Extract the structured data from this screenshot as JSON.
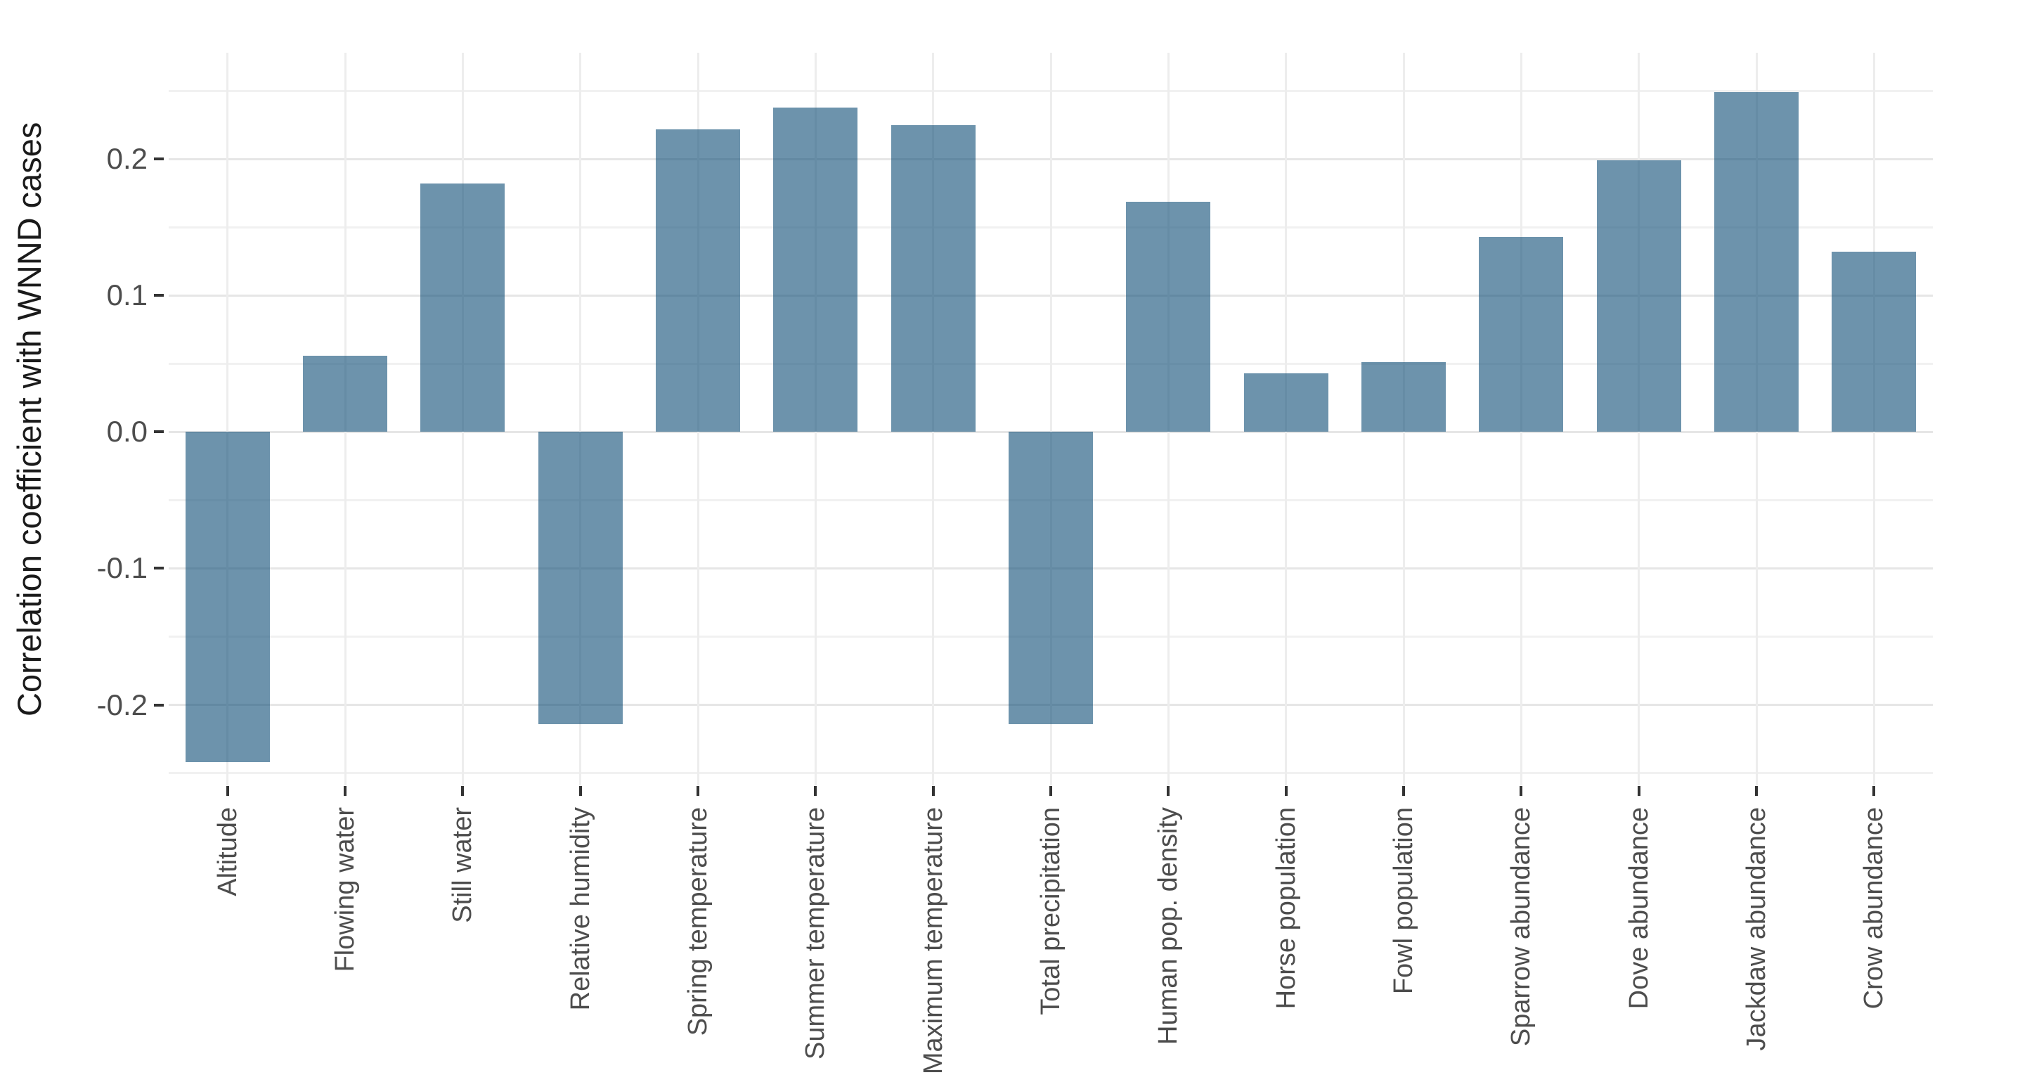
{
  "figure": {
    "background": "#ffffff"
  },
  "chart_data": {
    "type": "bar",
    "title": "",
    "xlabel": "",
    "ylabel": "Correlation coefficient with WNND cases",
    "categories": [
      "Altitude",
      "Flowing water",
      "Still water",
      "Relative humidity",
      "Spring temperature",
      "Summer temperature",
      "Maximum temperature",
      "Total precipitation",
      "Human pop. density",
      "Horse population",
      "Fowl population",
      "Sparrow abundance",
      "Dove abundance",
      "Jackdaw abundance",
      "Crow abundance"
    ],
    "values": [
      -0.242,
      0.056,
      0.182,
      -0.214,
      0.222,
      0.238,
      0.225,
      -0.214,
      0.169,
      0.043,
      0.051,
      0.143,
      0.199,
      0.249,
      0.132
    ],
    "y_ticks": [
      0.2,
      0.1,
      0.0,
      -0.1,
      -0.2
    ],
    "y_tick_labels": [
      "0.2",
      "0.1",
      "0.0",
      "-0.1",
      "-0.2"
    ],
    "y_minor_ticks": [
      0.25,
      0.15,
      0.05,
      -0.05,
      -0.15,
      -0.25
    ],
    "ylim": [
      -0.259,
      0.278
    ],
    "grid": "major+minor horizontal, vertical per category",
    "legend": "none",
    "bar_width_fraction": 0.72
  },
  "colors": {
    "bar_fill": "#6E94AC",
    "bar_fill_rgba": "rgba(17,79,120,0.61)",
    "grid_major": "#e6e6e6",
    "grid_minor": "#f1f1f1",
    "grid_vertical": "#ededed",
    "tick_mark": "#333333",
    "tick_label": "#4d4d4d",
    "axis_title": "#1a1a1a",
    "background": "#ffffff"
  }
}
